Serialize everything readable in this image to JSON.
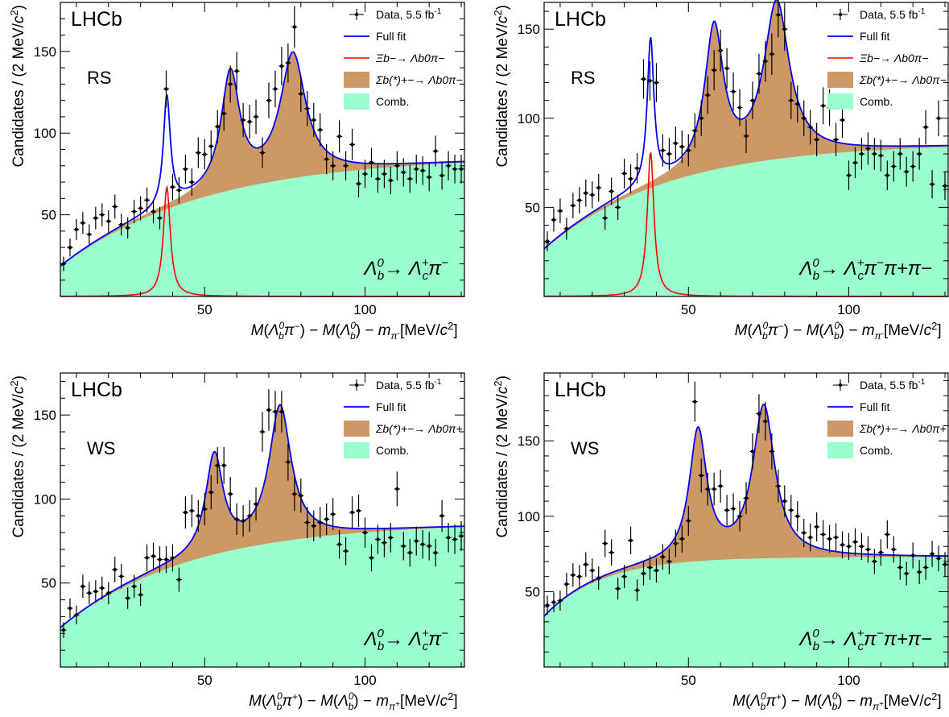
{
  "colors": {
    "comb": "#99ffcc",
    "signal_sigma": "#cc9966",
    "full_fit": "#0000ff",
    "xi_b": "#ff0000",
    "data": "#000000"
  },
  "chart_data": [
    {
      "type": "line",
      "experiment": "LHCb",
      "sample": "RS",
      "decay": "Λb0→ Λc+π−",
      "decay_parts": {
        "lead": "Λ",
        "lead_sub": "b",
        "lead_sup": "0",
        "arrow": "→ Λ",
        "sub": "c",
        "sup": "+",
        "tail": "π",
        "tail_sup": "−",
        "extra": ""
      },
      "xlabel": "M(Λb0π−) − M(Λb0) − mπ- [MeV/c2]",
      "xlabel_parts": {
        "pi": "π",
        "pisign": "−",
        "m_sub": "π",
        "m_sub_sign": "-"
      },
      "ylabel": "Candidates / (2 MeV/c2)",
      "xlim": [
        5,
        131
      ],
      "ylim": [
        0,
        180
      ],
      "xticks": [
        50,
        100
      ],
      "yticks": [
        50,
        100,
        150
      ],
      "legend": [
        "Data, 5.5 fb-1",
        "Full fit",
        "Ξb−→ Λb0π−",
        "Σb(*)+− → Λb0π−",
        "Comb."
      ],
      "legend_parts": {
        "sigma_label": "Σb(*)+−→ Λb0π−",
        "xi_label": "Ξb−→ Λb0π−",
        "data_label": "Data, 5.5 fb",
        "data_sup": "-1",
        "full_label": "Full fit",
        "comb_label": "Comb."
      },
      "model": {
        "comb": {
          "A": 86,
          "B": 68,
          "tau": 45
        },
        "peaks": [
          {
            "m": 38.2,
            "w": 1.3,
            "h": 67,
            "type": "xi"
          },
          {
            "m": 58,
            "w": 3.5,
            "h": 70,
            "type": "sigma"
          },
          {
            "m": 77.5,
            "w": 4.8,
            "h": 75,
            "type": "sigma"
          }
        ]
      },
      "series": [
        {
          "name": "Data, 5.5 fb-1",
          "x": [
            6,
            8,
            10,
            12,
            14,
            16,
            18,
            20,
            22,
            24,
            26,
            28,
            30,
            32,
            34,
            36,
            38,
            40,
            42,
            44,
            46,
            48,
            50,
            52,
            54,
            56,
            58,
            60,
            62,
            64,
            66,
            68,
            70,
            72,
            74,
            76,
            78,
            80,
            82,
            84,
            86,
            88,
            90,
            92,
            94,
            96,
            98,
            100,
            102,
            104,
            106,
            108,
            110,
            112,
            114,
            116,
            118,
            120,
            122,
            124,
            126,
            128,
            130
          ],
          "y": [
            20,
            30,
            41,
            45,
            38,
            48,
            50,
            46,
            55,
            44,
            42,
            52,
            54,
            59,
            52,
            48,
            127,
            67,
            65,
            78,
            70,
            88,
            87,
            92,
            104,
            112,
            130,
            138,
            108,
            107,
            110,
            88,
            120,
            127,
            141,
            143,
            165,
            124,
            115,
            108,
            102,
            84,
            80,
            98,
            80,
            93,
            69,
            75,
            82,
            72,
            75,
            71,
            80,
            76,
            72,
            78,
            77,
            73,
            89,
            74,
            80,
            78,
            78
          ]
        }
      ]
    },
    {
      "type": "line",
      "experiment": "LHCb",
      "sample": "RS",
      "decay": "Λb0→ Λc+π−π+π−",
      "decay_parts": {
        "lead": "Λ",
        "lead_sub": "b",
        "lead_sup": "0",
        "arrow": "→ Λ",
        "sub": "c",
        "sup": "+",
        "tail": "π",
        "tail_sup": "−",
        "extra": "π+π−"
      },
      "xlabel": "M(Λb0π−) − M(Λb0) − mπ- [MeV/c2]",
      "xlabel_parts": {
        "pi": "π",
        "pisign": "−",
        "m_sub": "π",
        "m_sub_sign": "-"
      },
      "ylabel": "Candidates / (2 MeV/c2)",
      "xlim": [
        5,
        131
      ],
      "ylim": [
        0,
        165
      ],
      "xticks": [
        50,
        100
      ],
      "yticks": [
        50,
        100,
        150
      ],
      "legend": [
        "Data, 5.5 fb-1",
        "Full fit",
        "Ξb−→ Λb0π−",
        "Σb(*)+− → Λb0π−",
        "Comb."
      ],
      "legend_parts": {
        "sigma_label": "Σb(*)+−→ Λb0π−",
        "xi_label": "Ξb−→ Λb0π−",
        "data_label": "Data, 5.5 fb",
        "data_sup": "-1",
        "full_label": "Full fit",
        "comb_label": "Comb."
      },
      "model": {
        "comb": {
          "A": 86,
          "B": 60,
          "tau": 38
        },
        "peaks": [
          {
            "m": 38.2,
            "w": 1.25,
            "h": 81,
            "type": "xi"
          },
          {
            "m": 58,
            "w": 3.5,
            "h": 78,
            "type": "sigma"
          },
          {
            "m": 77.5,
            "w": 4.8,
            "h": 87,
            "type": "sigma"
          }
        ]
      },
      "series": [
        {
          "name": "Data, 5.5 fb-1",
          "x": [
            6,
            8,
            10,
            12,
            14,
            16,
            18,
            20,
            22,
            24,
            26,
            28,
            30,
            32,
            34,
            36,
            38,
            40,
            42,
            44,
            46,
            48,
            50,
            52,
            54,
            56,
            58,
            60,
            62,
            64,
            66,
            68,
            70,
            72,
            74,
            76,
            78,
            80,
            82,
            84,
            86,
            88,
            90,
            92,
            94,
            96,
            98,
            100,
            102,
            104,
            106,
            108,
            110,
            112,
            114,
            116,
            118,
            120,
            122,
            124,
            126,
            128,
            130
          ],
          "y": [
            31,
            43,
            48,
            38,
            51,
            54,
            58,
            57,
            61,
            44,
            59,
            50,
            69,
            66,
            72,
            122,
            121,
            120,
            82,
            80,
            86,
            84,
            82,
            93,
            100,
            113,
            127,
            138,
            128,
            115,
            106,
            90,
            110,
            125,
            132,
            136,
            158,
            150,
            110,
            108,
            100,
            95,
            88,
            107,
            106,
            88,
            99,
            68,
            75,
            80,
            83,
            80,
            79,
            68,
            73,
            80,
            70,
            73,
            80,
            95,
            63,
            100,
            62
          ]
        }
      ]
    },
    {
      "type": "line",
      "experiment": "LHCb",
      "sample": "WS",
      "decay": "Λb0→ Λc+π−",
      "decay_parts": {
        "lead": "Λ",
        "lead_sub": "b",
        "lead_sup": "0",
        "arrow": "→ Λ",
        "sub": "c",
        "sup": "+",
        "tail": "π",
        "tail_sup": "−",
        "extra": ""
      },
      "xlabel": "M(Λb0π+) − M(Λb0) − mπ+ [MeV/c2]",
      "xlabel_parts": {
        "pi": "π",
        "pisign": "+",
        "m_sub": "π",
        "m_sub_sign": "+"
      },
      "ylabel": "Candidates / (2 MeV/c2)",
      "xlim": [
        5,
        131
      ],
      "ylim": [
        0,
        175
      ],
      "xticks": [
        50,
        100
      ],
      "yticks": [
        50,
        100,
        150
      ],
      "legend": [
        "Data, 5.5 fb-1",
        "Full fit",
        "Σb(*)+− → Λb0π+",
        "Comb."
      ],
      "legend_parts": {
        "sigma_label": "Σb(*)+−→ Λb0π+",
        "data_label": "Data, 5.5 fb",
        "data_sup": "-1",
        "full_label": "Full fit",
        "comb_label": "Comb."
      },
      "model": {
        "comb": {
          "A": 86,
          "B": 63,
          "tau": 40
        },
        "peaks": [
          {
            "m": 53,
            "w": 3.3,
            "h": 58,
            "type": "sigma"
          },
          {
            "m": 73.5,
            "w": 4.2,
            "h": 80,
            "type": "sigma"
          }
        ]
      },
      "series": [
        {
          "name": "Data, 5.5 fb-1",
          "x": [
            6,
            8,
            10,
            12,
            14,
            16,
            18,
            20,
            22,
            24,
            26,
            28,
            30,
            32,
            34,
            36,
            38,
            40,
            42,
            44,
            46,
            48,
            50,
            52,
            54,
            56,
            58,
            60,
            62,
            64,
            66,
            68,
            70,
            72,
            74,
            76,
            78,
            80,
            82,
            84,
            86,
            88,
            90,
            92,
            94,
            96,
            98,
            100,
            102,
            104,
            106,
            108,
            110,
            112,
            114,
            116,
            118,
            120,
            122,
            124,
            126,
            128,
            130
          ],
          "y": [
            22,
            35,
            31,
            48,
            44,
            45,
            47,
            44,
            58,
            54,
            41,
            48,
            43,
            65,
            66,
            64,
            64,
            65,
            52,
            92,
            93,
            90,
            94,
            104,
            120,
            120,
            103,
            88,
            87,
            90,
            97,
            140,
            153,
            152,
            152,
            122,
            103,
            102,
            86,
            84,
            86,
            88,
            91,
            73,
            69,
            92,
            93,
            80,
            65,
            76,
            74,
            77,
            106,
            72,
            68,
            75,
            73,
            72,
            68,
            90,
            77,
            76,
            78
          ]
        }
      ]
    },
    {
      "type": "line",
      "experiment": "LHCb",
      "sample": "WS",
      "decay": "Λb0→ Λc+π−π+π−",
      "decay_parts": {
        "lead": "Λ",
        "lead_sub": "b",
        "lead_sup": "0",
        "arrow": "→ Λ",
        "sub": "c",
        "sup": "+",
        "tail": "π",
        "tail_sup": "−",
        "extra": "π+π−"
      },
      "xlabel": "M(Λb0π+) − M(Λb0) − mπ+ [MeV/c2]",
      "xlabel_parts": {
        "pi": "π",
        "pisign": "+",
        "m_sub": "π",
        "m_sub_sign": "+"
      },
      "ylabel": "Candidates / (2 MeV/c2)",
      "xlim": [
        5,
        131
      ],
      "ylim": [
        0,
        195
      ],
      "xticks": [
        50,
        100
      ],
      "yticks": [
        50,
        100,
        150
      ],
      "legend": [
        "Data, 5.5 fb-1",
        "Full fit",
        "Σb(*)+− → Λb0π+",
        "Comb."
      ],
      "legend_parts": {
        "sigma_label": "Σb(*)+−→ Λb0π+",
        "data_label": "Data, 5.5 fb",
        "data_sup": "-1",
        "full_label": "Full fit",
        "comb_label": "Comb."
      },
      "model": {
        "comb": {
          "A": 73,
          "B": 40,
          "tau": 18
        },
        "peaks": [
          {
            "m": 53,
            "w": 3.3,
            "h": 85,
            "type": "sigma"
          },
          {
            "m": 73.5,
            "w": 4.2,
            "h": 100,
            "type": "sigma"
          }
        ]
      },
      "series": [
        {
          "name": "Data, 5.5 fb-1",
          "x": [
            6,
            8,
            10,
            12,
            14,
            16,
            18,
            20,
            22,
            24,
            26,
            28,
            30,
            32,
            34,
            36,
            38,
            40,
            42,
            44,
            46,
            48,
            50,
            52,
            54,
            56,
            58,
            60,
            62,
            64,
            66,
            68,
            70,
            72,
            74,
            76,
            78,
            80,
            82,
            84,
            86,
            88,
            90,
            92,
            94,
            96,
            98,
            100,
            102,
            104,
            106,
            108,
            110,
            112,
            114,
            116,
            118,
            120,
            122,
            124,
            126,
            128,
            130
          ],
          "y": [
            41,
            43,
            44,
            55,
            61,
            60,
            68,
            64,
            59,
            82,
            76,
            52,
            60,
            84,
            51,
            62,
            66,
            64,
            73,
            70,
            82,
            85,
            97,
            176,
            127,
            118,
            118,
            120,
            104,
            105,
            100,
            112,
            143,
            168,
            163,
            143,
            120,
            110,
            104,
            100,
            89,
            86,
            93,
            88,
            85,
            86,
            81,
            80,
            83,
            80,
            78,
            70,
            76,
            88,
            78,
            66,
            62,
            74,
            63,
            66,
            75,
            72,
            68
          ]
        }
      ]
    }
  ]
}
